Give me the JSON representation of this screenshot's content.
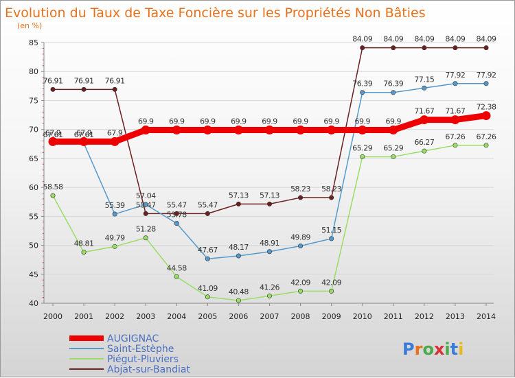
{
  "title": "Evolution du Taux de Taxe Foncière sur les Propriétés Non Bâties",
  "subtitle": "(en %)",
  "logo_text": "Proxiti",
  "chart_data": {
    "type": "line",
    "title": "Evolution du Taux de Taxe Foncière sur les Propriétés Non Bâties",
    "ylabel": "(en %)",
    "xlabel": "",
    "ylim": [
      40,
      85
    ],
    "yticks": [
      40,
      45,
      50,
      55,
      60,
      65,
      70,
      75,
      80,
      85
    ],
    "categories": [
      "2000",
      "2001",
      "2002",
      "2003",
      "2004",
      "2005",
      "2006",
      "2007",
      "2008",
      "2009",
      "2010",
      "2011",
      "2012",
      "2013",
      "2014"
    ],
    "legend_position": "bottom-left",
    "series": [
      {
        "name": "Abjat-sur-Bandiat",
        "color": "#6b2020",
        "values": [
          76.91,
          76.91,
          76.91,
          55.47,
          55.47,
          55.47,
          57.13,
          57.13,
          58.23,
          58.23,
          84.09,
          84.09,
          84.09,
          84.09,
          84.09
        ],
        "labels": [
          "76.91",
          "76.91",
          "76.91",
          "55.47",
          "55.47",
          "55.47",
          "57.13",
          "57.13",
          "58.23",
          "58.23",
          "84.09",
          "84.09",
          "84.09",
          "84.09",
          "84.09"
        ]
      },
      {
        "name": "Piégut-Pluviers",
        "color": "#99dd66",
        "values": [
          58.58,
          48.81,
          49.79,
          51.28,
          44.58,
          41.09,
          40.48,
          41.26,
          42.09,
          42.09,
          65.29,
          65.29,
          66.27,
          67.26,
          67.26
        ],
        "labels": [
          "58.58",
          "48.81",
          "49.79",
          "51.28",
          "44.58",
          "41.09",
          "40.48",
          "41.26",
          "42.09",
          "42.09",
          "65.29",
          "65.29",
          "66.27",
          "67.26",
          "67.26"
        ]
      },
      {
        "name": "Saint-Estèphe",
        "color": "#5599cc",
        "values": [
          67.61,
          67.61,
          55.39,
          57.04,
          53.78,
          47.67,
          48.17,
          48.91,
          49.89,
          51.15,
          76.39,
          76.39,
          77.15,
          77.92,
          77.92
        ],
        "labels": [
          "67.61",
          "67.61",
          "55.39",
          "57.04",
          "53.78",
          "47.67",
          "48.17",
          "48.91",
          "49.89",
          "51.15",
          "76.39",
          "76.39",
          "77.15",
          "77.92",
          "77.92"
        ]
      },
      {
        "name": "AUGIGNAC",
        "color": "#ee0000",
        "values": [
          67.9,
          67.9,
          67.9,
          69.9,
          69.9,
          69.9,
          69.9,
          69.9,
          69.9,
          69.9,
          69.9,
          69.9,
          71.67,
          71.67,
          72.38
        ],
        "labels": [
          "67.9",
          "67.9",
          "67.9",
          "69.9",
          "69.9",
          "69.9",
          "69.9",
          "69.9",
          "69.9",
          "69.9",
          "69.9",
          "69.9",
          "71.67",
          "71.67",
          "72.38"
        ]
      }
    ],
    "legend": [
      "AUGIGNAC",
      "Saint-Estèphe",
      "Piégut-Pluviers",
      "Abjat-sur-Bandiat"
    ]
  }
}
